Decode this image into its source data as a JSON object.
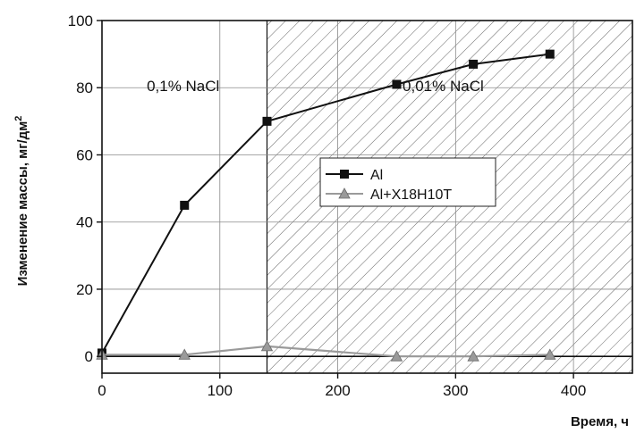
{
  "chart_data": {
    "type": "line",
    "xlabel": "Время, ч",
    "ylabel": "Изменение массы, мг/дм",
    "ylabel_sup": "2",
    "xlim": [
      0,
      450
    ],
    "ylim": [
      -5,
      100
    ],
    "xticks": [
      0,
      100,
      200,
      300,
      400
    ],
    "yticks": [
      0,
      20,
      40,
      60,
      80,
      100
    ],
    "grid": true,
    "legend_position": "center",
    "regions": [
      {
        "label": "0,1% NaCl",
        "x_range": [
          0,
          140
        ],
        "hatched": false
      },
      {
        "label": "0,01% NaCl",
        "x_range": [
          140,
          450
        ],
        "hatched": true
      }
    ],
    "series": [
      {
        "name": "Al",
        "color": "#111111",
        "marker": "square",
        "x": [
          0,
          70,
          140,
          250,
          315,
          380
        ],
        "y": [
          1,
          45,
          70,
          81,
          87,
          90
        ]
      },
      {
        "name": "Al+X18H10T",
        "color": "#9a9a9a",
        "marker": "triangle",
        "x": [
          0,
          70,
          140,
          250,
          315,
          380
        ],
        "y": [
          0.5,
          0.5,
          3,
          0,
          0,
          0.5
        ]
      }
    ]
  }
}
